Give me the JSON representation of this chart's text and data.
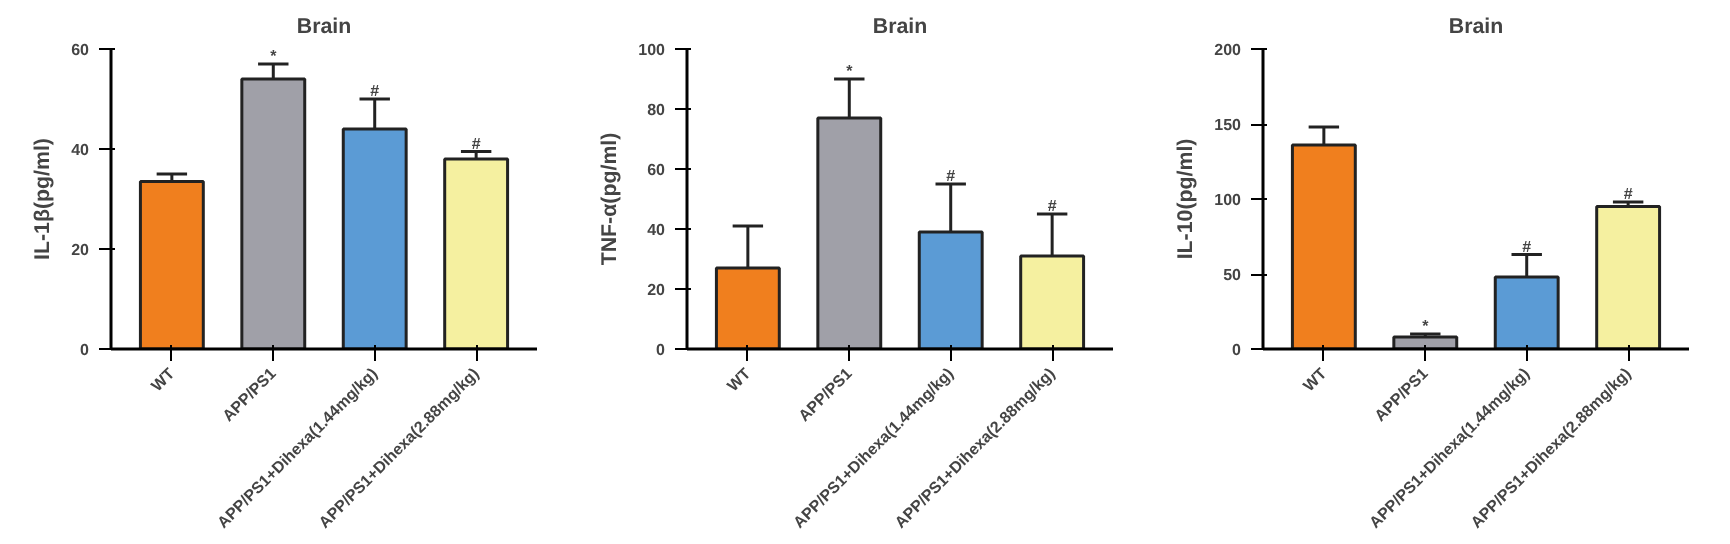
{
  "chart_data": [
    {
      "type": "bar",
      "title": "Brain",
      "ylabel": "IL-1β(pg/ml)",
      "categories": [
        "WT",
        "APP/PS1",
        "APP/PS1+Dihexa(1.44mg/kg)",
        "APP/PS1+Dihexa(2.88mg/kg)"
      ],
      "values": [
        33.5,
        54,
        44,
        38
      ],
      "colors": [
        "#f07f1e",
        "#a0a0a8",
        "#5b9bd5",
        "#f5f0a0"
      ],
      "errors": [
        [
          33.5,
          35
        ],
        [
          54,
          57
        ],
        [
          44,
          50
        ],
        [
          38,
          39.5
        ]
      ],
      "ylim": [
        0,
        60
      ],
      "yticks": [
        0,
        20,
        40,
        60
      ],
      "grid": false,
      "annotations": [
        {
          "text": "*",
          "x": "APP/PS1",
          "y": 57
        },
        {
          "text": "#",
          "x": "APP/PS1+Dihexa(1.44mg/kg)",
          "y": 50
        },
        {
          "text": "#",
          "x": "APP/PS1+Dihexa(2.88mg/kg)",
          "y": 39.5
        }
      ]
    },
    {
      "type": "bar",
      "title": "Brain",
      "ylabel": "TNF-α(pg/ml)",
      "categories": [
        "WT",
        "APP/PS1",
        "APP/PS1+Dihexa(1.44mg/kg)",
        "APP/PS1+Dihexa(2.88mg/kg)"
      ],
      "values": [
        27,
        77,
        39,
        31
      ],
      "colors": [
        "#f07f1e",
        "#a0a0a8",
        "#5b9bd5",
        "#f5f0a0"
      ],
      "errors": [
        [
          27,
          41
        ],
        [
          77,
          90
        ],
        [
          39,
          55
        ],
        [
          31,
          45
        ]
      ],
      "ylim": [
        0,
        100
      ],
      "yticks": [
        0,
        20,
        40,
        60,
        80,
        100
      ],
      "grid": false,
      "annotations": [
        {
          "text": "*",
          "x": "APP/PS1",
          "y": 90
        },
        {
          "text": "#",
          "x": "APP/PS1+Dihexa(1.44mg/kg)",
          "y": 55
        },
        {
          "text": "#",
          "x": "APP/PS1+Dihexa(2.88mg/kg)",
          "y": 45
        }
      ]
    },
    {
      "type": "bar",
      "title": "Brain",
      "ylabel": "IL-10(pg/ml)",
      "categories": [
        "WT",
        "APP/PS1",
        "APP/PS1+Dihexa(1.44mg/kg)",
        "APP/PS1+Dihexa(2.88mg/kg)"
      ],
      "values": [
        136,
        8,
        48,
        95
      ],
      "colors": [
        "#f07f1e",
        "#a0a0a8",
        "#5b9bd5",
        "#f5f0a0"
      ],
      "errors": [
        [
          136,
          148
        ],
        [
          8,
          10
        ],
        [
          48,
          63
        ],
        [
          95,
          98
        ]
      ],
      "ylim": [
        0,
        200
      ],
      "yticks": [
        0,
        50,
        100,
        150,
        200
      ],
      "grid": false,
      "annotations": [
        {
          "text": "*",
          "x": "APP/PS1",
          "y": 10
        },
        {
          "text": "#",
          "x": "APP/PS1+Dihexa(1.44mg/kg)",
          "y": 63
        },
        {
          "text": "#",
          "x": "APP/PS1+Dihexa(2.88mg/kg)",
          "y": 98
        }
      ]
    }
  ]
}
